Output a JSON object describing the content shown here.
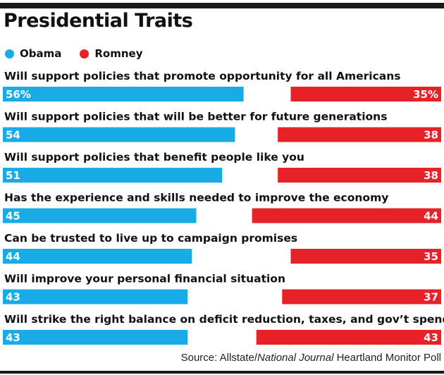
{
  "title": "Presidential Traits",
  "colors": {
    "obama": "#19abe6",
    "romney": "#e62228"
  },
  "source": {
    "prefix": "Source: Allstate/",
    "italic": "National Journal",
    "suffix": " Heartland Monitor Poll"
  },
  "chart_data": {
    "type": "bar",
    "title": "Presidential Traits",
    "legend": "top-left",
    "series": [
      {
        "name": "Obama",
        "labels": [
          "56%",
          "54",
          "51",
          "45",
          "44",
          "43",
          "43"
        ],
        "values": [
          56,
          54,
          51,
          45,
          44,
          43,
          43
        ]
      },
      {
        "name": "Romney",
        "labels": [
          "35%",
          "38",
          "38",
          "44",
          "35",
          "37",
          "43"
        ],
        "values": [
          35,
          38,
          38,
          44,
          35,
          37,
          43
        ]
      }
    ],
    "categories": [
      "Will support policies that promote opportunity for all Americans",
      "Will support policies that will be better for future generations",
      "Will support policies that benefit people like you",
      "Has the experience and skills needed to improve the economy",
      "Can be trusted to live up to campaign promises",
      "Will improve your personal financial situation",
      "Will strike the right balance on deficit reduction, taxes, and gov’t spending"
    ]
  }
}
